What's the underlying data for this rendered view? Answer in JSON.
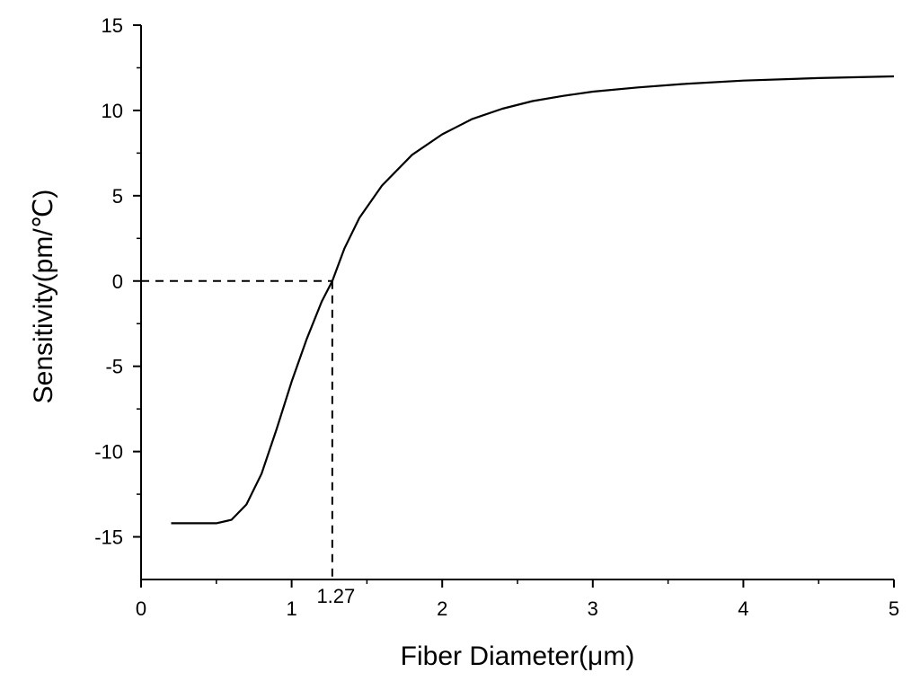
{
  "chart_data": {
    "type": "line",
    "title": "",
    "xlabel": "Fiber Diameter(μm)",
    "ylabel": "Sensitivity(pm/℃)",
    "xlim": [
      0,
      5
    ],
    "ylim": [
      -17.5,
      15
    ],
    "x_ticks": [
      0,
      1,
      2,
      3,
      4,
      5
    ],
    "x_tick_labels": [
      "0",
      "1",
      "2",
      "3",
      "4",
      "5"
    ],
    "y_ticks": [
      15,
      10,
      5,
      0,
      -5,
      -10,
      -15
    ],
    "y_tick_labels": [
      "15",
      "10",
      "5",
      "0",
      "-5",
      "-10",
      "-15"
    ],
    "grid": false,
    "legend": "none",
    "line_color": "#000000",
    "series": [
      {
        "x": [
          0.2,
          0.3,
          0.4,
          0.5,
          0.6,
          0.7,
          0.8,
          0.9,
          1.0,
          1.1,
          1.2,
          1.27,
          1.35,
          1.45,
          1.6,
          1.8,
          2.0,
          2.2,
          2.4,
          2.6,
          2.8,
          3.0,
          3.3,
          3.6,
          4.0,
          4.5,
          5.0
        ],
        "y": [
          -14.2,
          -14.2,
          -14.2,
          -14.2,
          -14.0,
          -13.1,
          -11.3,
          -8.7,
          -5.9,
          -3.4,
          -1.2,
          0.0,
          1.9,
          3.7,
          5.6,
          7.4,
          8.6,
          9.5,
          10.1,
          10.55,
          10.85,
          11.1,
          11.35,
          11.55,
          11.75,
          11.9,
          12.0
        ]
      }
    ],
    "annotations": [
      {
        "x": 1.27,
        "y": 0,
        "label": "1.27",
        "style": "dashed"
      }
    ]
  }
}
